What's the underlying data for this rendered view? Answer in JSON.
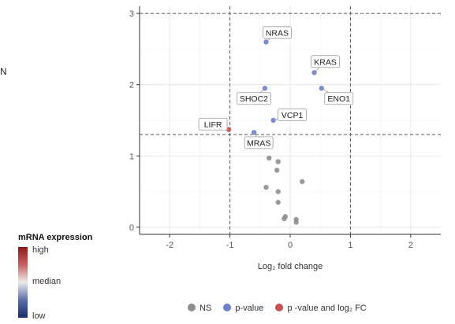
{
  "stray_text": "N",
  "chart_data": {
    "type": "scatter",
    "title": "",
    "xlabel": "Log₂ fold change",
    "ylabel": "",
    "xlim": [
      -2.5,
      2.5
    ],
    "ylim": [
      -0.1,
      3.1
    ],
    "x_ticks": [
      -2,
      -1,
      0,
      1,
      2
    ],
    "x_tick_labels": [
      "-2",
      "-1",
      "0",
      "1",
      "2"
    ],
    "y_ticks": [
      0,
      1,
      2,
      3
    ],
    "y_tick_labels": [
      "0",
      "1",
      "2",
      "3"
    ],
    "grid": true,
    "thresholds": {
      "x": [
        -1,
        1
      ],
      "y": [
        1.3,
        3.0
      ]
    },
    "series": [
      {
        "name": "NS",
        "color": "#8f8f8f",
        "points": [
          {
            "x": -0.35,
            "y": 0.97
          },
          {
            "x": -0.2,
            "y": 0.92
          },
          {
            "x": -0.22,
            "y": 0.8
          },
          {
            "x": 0.2,
            "y": 0.64
          },
          {
            "x": -0.4,
            "y": 0.56
          },
          {
            "x": -0.2,
            "y": 0.5
          },
          {
            "x": -0.2,
            "y": 0.35
          },
          {
            "x": -0.08,
            "y": 0.15
          },
          {
            "x": -0.1,
            "y": 0.12
          },
          {
            "x": 0.1,
            "y": 0.11
          },
          {
            "x": 0.1,
            "y": 0.07
          }
        ]
      },
      {
        "name": "p-value",
        "color": "#6f7fc8",
        "points": [
          {
            "x": -0.4,
            "y": 2.6,
            "label": "NRAS"
          },
          {
            "x": 0.4,
            "y": 2.17,
            "label": "KRAS"
          },
          {
            "x": 0.52,
            "y": 1.95,
            "label": "ENO1"
          },
          {
            "x": -0.42,
            "y": 1.95,
            "label": "SHOC2"
          },
          {
            "x": -0.28,
            "y": 1.5,
            "label": "VCP1"
          },
          {
            "x": -0.6,
            "y": 1.33,
            "label": "MRAS"
          }
        ]
      },
      {
        "name": "p -value and log₂ FC",
        "color": "#c85050",
        "points": [
          {
            "x": -1.02,
            "y": 1.37,
            "label": "LIFR"
          }
        ]
      }
    ]
  },
  "legend_colorbar": {
    "title": "mRNA expression",
    "high": "high",
    "median": "median",
    "low": "low",
    "colors": [
      "#8b1a1a",
      "#ececec",
      "#1a2d6b"
    ]
  }
}
